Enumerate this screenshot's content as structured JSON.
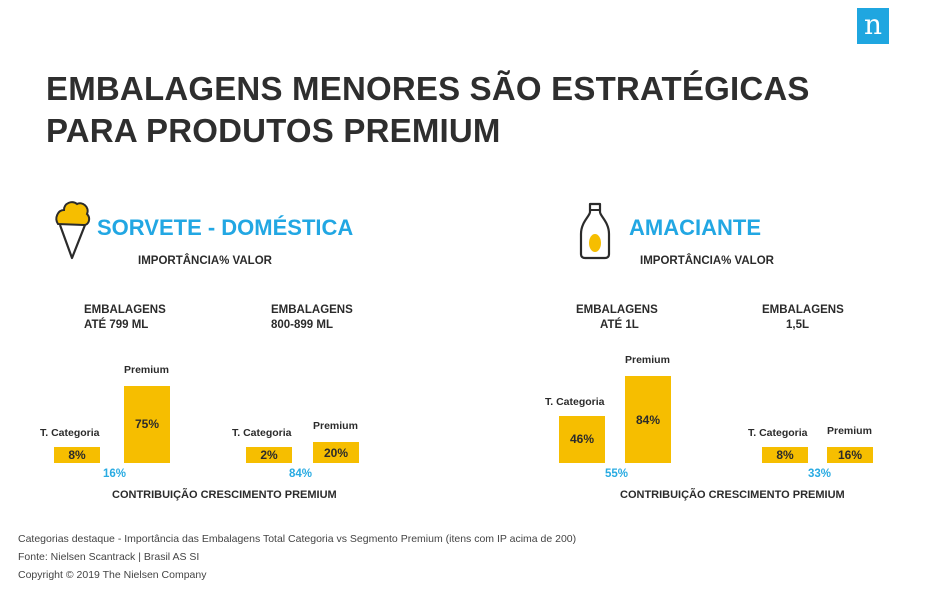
{
  "brand": {
    "logo_letter": "n",
    "color": "#1fa6e0"
  },
  "title": "EMBALAGENS MENORES SÃO ESTRATÉGICAS PARA PRODUTOS PREMIUM",
  "colors": {
    "accent": "#22a7e3",
    "bar": "#f6be00"
  },
  "chart_data": [
    {
      "type": "bar",
      "title": "SORVETE - DOMÉSTICA",
      "subtitle": "IMPORTÂNCIA% VALOR",
      "icon": "ice-cream-icon",
      "footer_label": "CONTRIBUIÇÃO CRESCIMENTO PREMIUM",
      "series_names": [
        "T. Categoria",
        "Premium"
      ],
      "groups": [
        {
          "label_line1": "EMBALAGENS",
          "label_line2": "ATÉ 799 ML",
          "values": [
            8,
            75
          ],
          "value_labels": [
            "8%",
            "75%"
          ],
          "growth": "16%"
        },
        {
          "label_line1": "EMBALAGENS",
          "label_line2": "800-899 ML",
          "values": [
            2,
            20
          ],
          "value_labels": [
            "2%",
            "20%"
          ],
          "growth": "84%"
        }
      ]
    },
    {
      "type": "bar",
      "title": "AMACIANTE",
      "subtitle": "IMPORTÂNCIA% VALOR",
      "icon": "softener-bottle-icon",
      "footer_label": "CONTRIBUIÇÃO CRESCIMENTO PREMIUM",
      "series_names": [
        "T. Categoria",
        "Premium"
      ],
      "groups": [
        {
          "label_line1": "EMBALAGENS",
          "label_line2": "ATÉ 1L",
          "values": [
            46,
            84
          ],
          "value_labels": [
            "46%",
            "84%"
          ],
          "growth": "55%"
        },
        {
          "label_line1": "EMBALAGENS",
          "label_line2": "1,5L",
          "values": [
            8,
            16
          ],
          "value_labels": [
            "8%",
            "16%"
          ],
          "growth": "33%"
        }
      ]
    }
  ],
  "footer": {
    "note": "Categorias destaque - Importância das Embalagens Total Categoria vs Segmento Premium (itens com IP acima de 200)",
    "source": "Fonte: Nielsen Scantrack | Brasil AS SI",
    "copyright": "Copyright © 2019 The Nielsen Company"
  }
}
